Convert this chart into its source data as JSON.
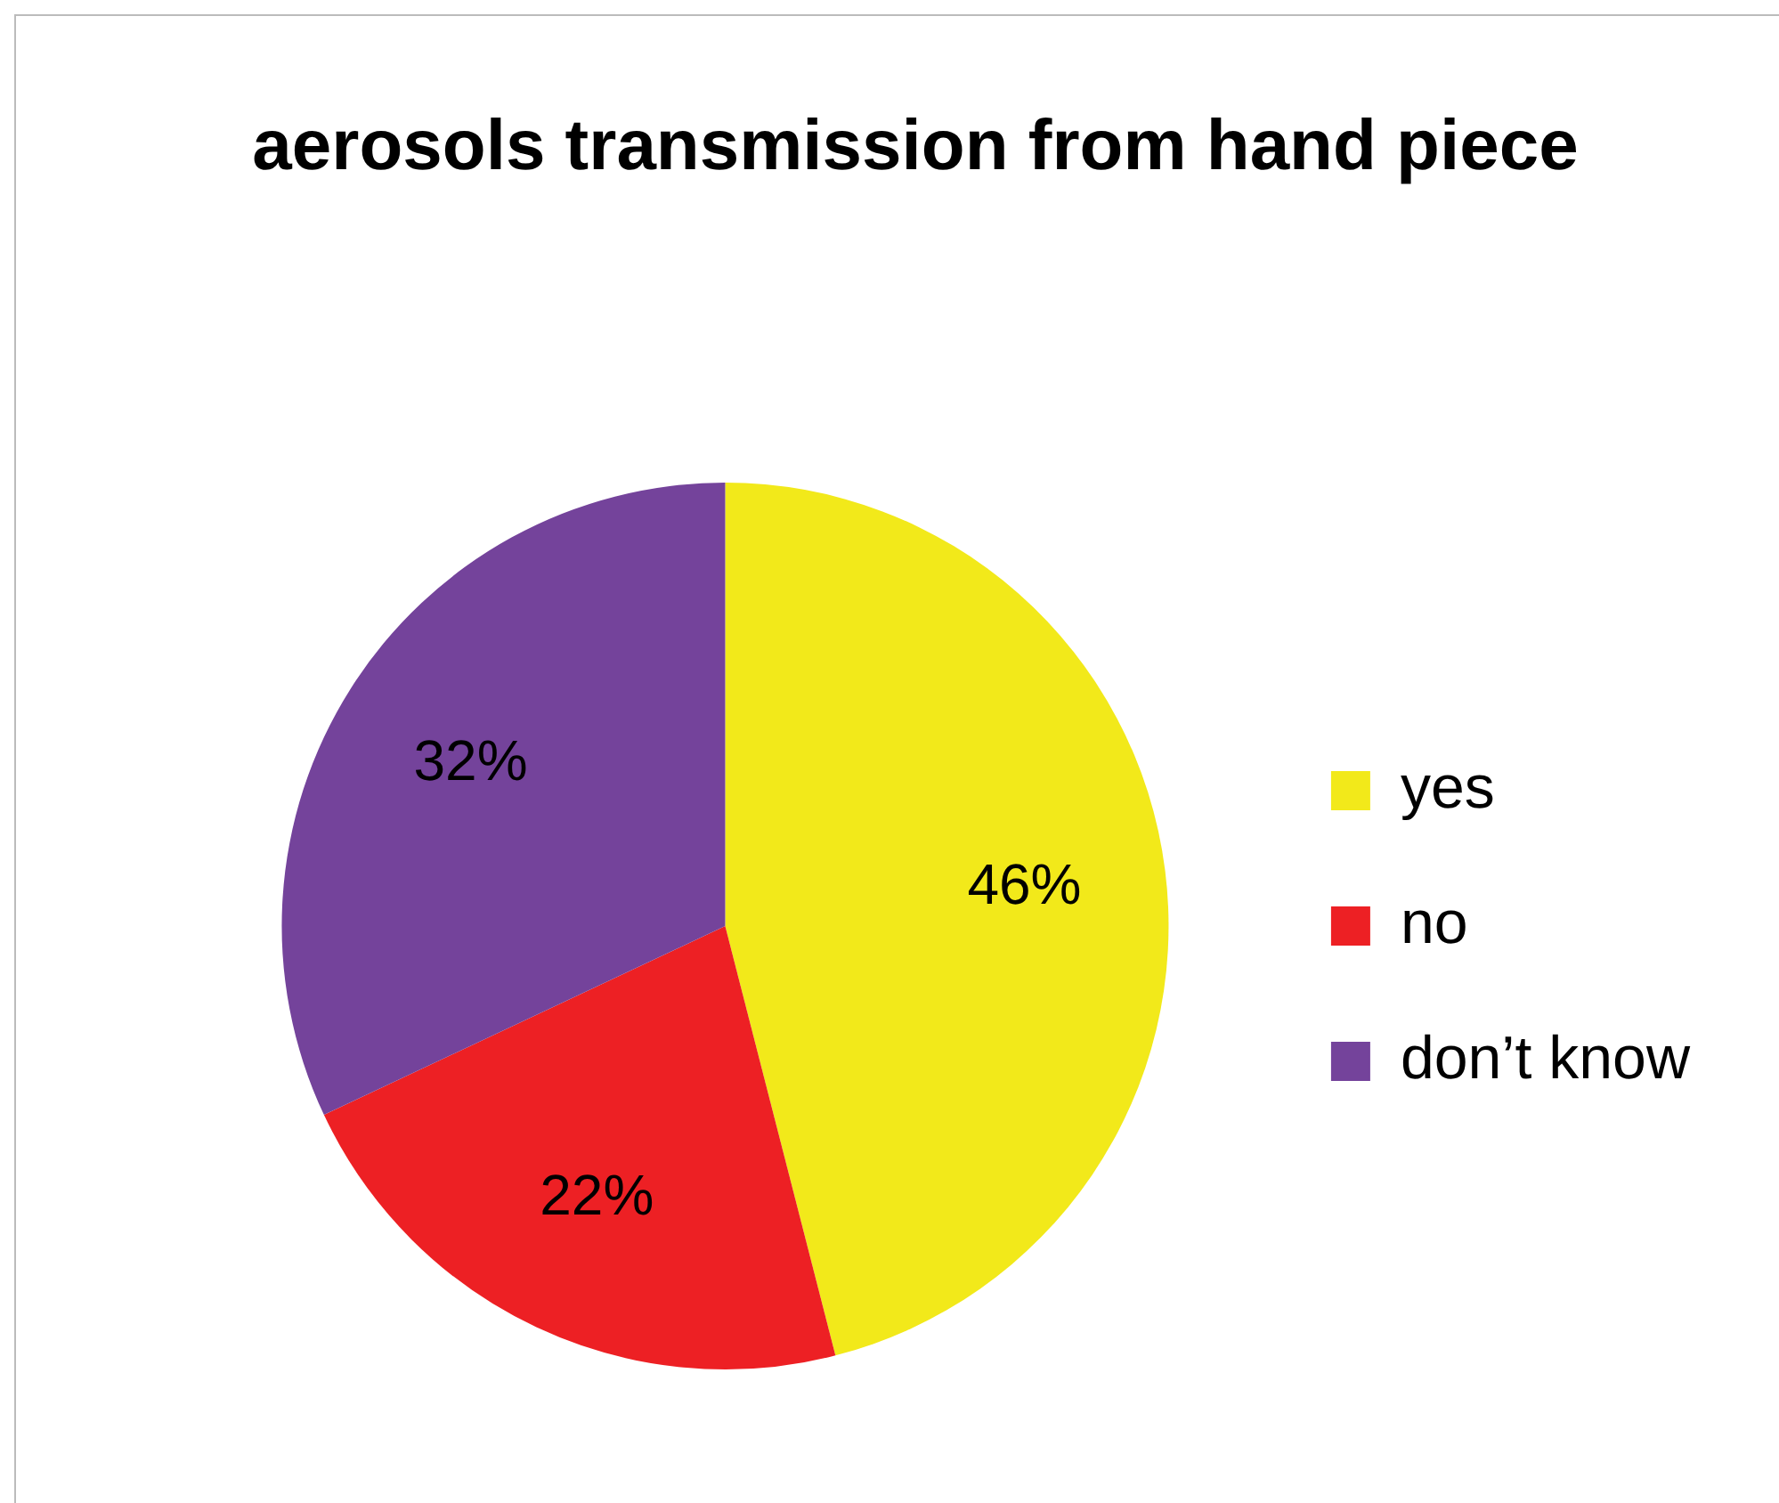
{
  "chart_data": {
    "type": "pie",
    "title": "aerosols transmission from hand piece",
    "categories": [
      "yes",
      "no",
      "don’t know"
    ],
    "values": [
      46,
      22,
      32
    ],
    "colors": [
      "#f2e91a",
      "#ed2024",
      "#74439b"
    ],
    "value_labels": [
      "46%",
      "22%",
      "32%"
    ],
    "legend": "right"
  }
}
